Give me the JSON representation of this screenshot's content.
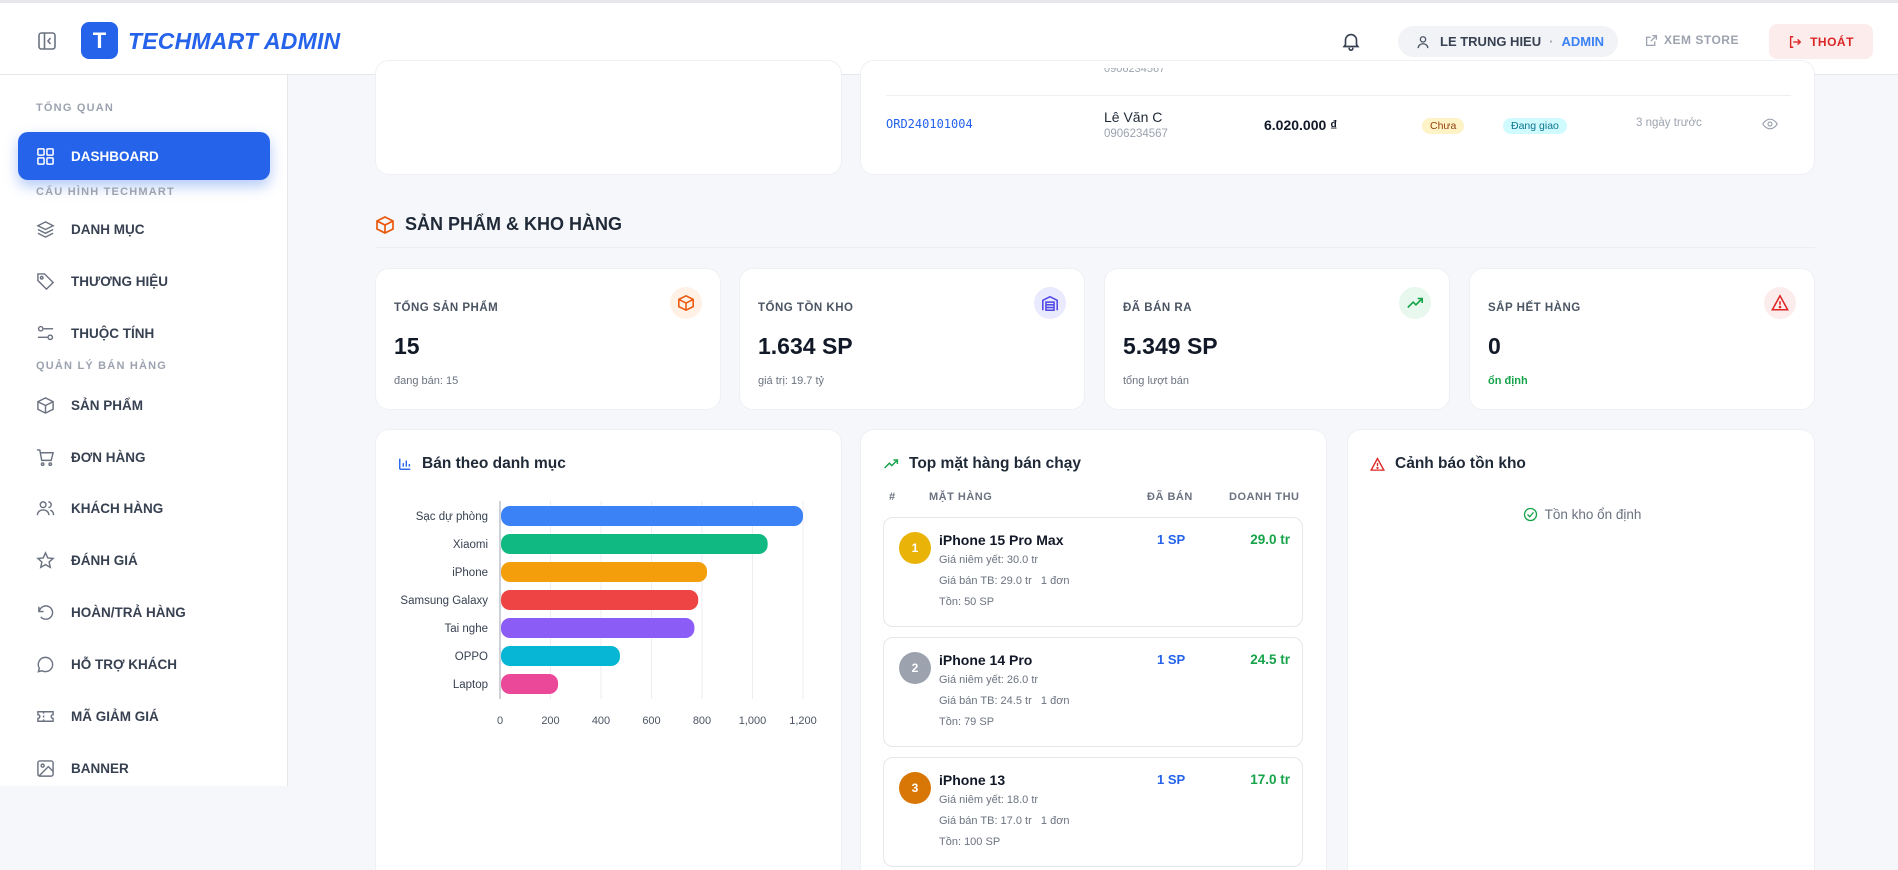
{
  "header": {
    "logo_letter": "T",
    "app_title": "TECHMART ADMIN",
    "user_name": "LE TRUNG HIEU",
    "user_sep": "·",
    "user_role": "ADMIN",
    "store_link": "XEM STORE",
    "logout_label": "THOÁT"
  },
  "sidebar": {
    "sections": [
      "TỔNG QUAN",
      "CẤU HÌNH TECHMART",
      "QUẢN LÝ BÁN HÀNG"
    ],
    "items": [
      {
        "label": "DASHBOARD",
        "icon": "dashboard-icon",
        "active": true
      },
      {
        "label": "DANH MỤC",
        "icon": "layers-icon"
      },
      {
        "label": "THƯƠNG HIỆU",
        "icon": "tag-icon"
      },
      {
        "label": "THUỘC TÍNH",
        "icon": "sliders-icon"
      },
      {
        "label": "SẢN PHẨM",
        "icon": "box-icon"
      },
      {
        "label": "ĐƠN HÀNG",
        "icon": "cart-icon"
      },
      {
        "label": "KHÁCH HÀNG",
        "icon": "users-icon"
      },
      {
        "label": "ĐÁNH GIÁ",
        "icon": "star-icon"
      },
      {
        "label": "HOÀN/TRẢ HÀNG",
        "icon": "undo-icon"
      },
      {
        "label": "HỖ TRỢ KHÁCH",
        "icon": "chat-icon"
      },
      {
        "label": "MÃ GIẢM GIÁ",
        "icon": "ticket-icon"
      },
      {
        "label": "BANNER",
        "icon": "image-icon"
      }
    ]
  },
  "orders": {
    "partial_phone": "0906234567",
    "row": {
      "code": "ORD240101004",
      "customer": "Lê Văn C",
      "phone": "0906234567",
      "amount": "6.020.000 ₫",
      "payment": "Chưa",
      "status": "Đang giao",
      "time": "3 ngày trước"
    }
  },
  "inventory": {
    "title": "SẢN PHẨM & KHO HÀNG",
    "stats": [
      {
        "label": "TỔNG SẢN PHẨM",
        "value": "15",
        "sub": "đang bán: 15",
        "icon": "box-icon",
        "color": "#ea580c",
        "bg": "#fff1e6"
      },
      {
        "label": "TỔNG TỒN KHO",
        "value": "1.634 SP",
        "sub": "giá trị: 19.7 tỷ",
        "icon": "warehouse-icon",
        "color": "#4f46e5",
        "bg": "#eaeaff"
      },
      {
        "label": "ĐÃ BÁN RA",
        "value": "5.349 SP",
        "sub": "tổng lượt bán",
        "icon": "trending-up-icon",
        "color": "#16a34a",
        "bg": "#e8f8ee"
      },
      {
        "label": "SẮP HẾT HÀNG",
        "value": "0",
        "sub": "ổn định",
        "icon": "alert-icon",
        "color": "#dc2626",
        "bg": "#fdecec"
      }
    ]
  },
  "category_chart": {
    "title": "Bán theo danh mục"
  },
  "chart_data": {
    "type": "bar",
    "orientation": "horizontal",
    "categories": [
      "Sạc dự phòng",
      "Xiaomi",
      "iPhone",
      "Samsung Galaxy",
      "Tai nghe",
      "OPPO",
      "Laptop"
    ],
    "values": [
      1200,
      1060,
      820,
      785,
      770,
      475,
      230
    ],
    "colors": [
      "#3b82f6",
      "#10b981",
      "#f59e0b",
      "#ef4444",
      "#8b5cf6",
      "#06b6d4",
      "#ec4899"
    ],
    "xlim": [
      0,
      1200
    ],
    "xticks": [
      "0",
      "200",
      "400",
      "600",
      "800",
      "1,000",
      "1,200"
    ],
    "grid": true
  },
  "top_products": {
    "title": "Top mặt hàng bán chạy",
    "columns": [
      "#",
      "MẶT HÀNG",
      "ĐÃ BÁN",
      "DOANH THU"
    ],
    "items": [
      {
        "rank": "1",
        "name": "iPhone 15 Pro Max",
        "list_price": "Giá niêm yết: 30.0 tr",
        "avg_price": "Giá bán TB: 29.0 tr   1 đơn",
        "stock": "Tồn: 50 SP",
        "sold": "1 SP",
        "revenue": "29.0 tr",
        "color": "#eab308"
      },
      {
        "rank": "2",
        "name": "iPhone 14 Pro",
        "list_price": "Giá niêm yết: 26.0 tr",
        "avg_price": "Giá bán TB: 24.5 tr   1 đơn",
        "stock": "Tồn: 79 SP",
        "sold": "1 SP",
        "revenue": "24.5 tr",
        "color": "#9ca3af"
      },
      {
        "rank": "3",
        "name": "iPhone 13",
        "list_price": "Giá niêm yết: 18.0 tr",
        "avg_price": "Giá bán TB: 17.0 tr   1 đơn",
        "stock": "Tồn: 100 SP",
        "sold": "1 SP",
        "revenue": "17.0 tr",
        "color": "#d97706"
      }
    ]
  },
  "stock_alert": {
    "title": "Cảnh báo tồn kho",
    "message": "Tồn kho ổn định"
  }
}
